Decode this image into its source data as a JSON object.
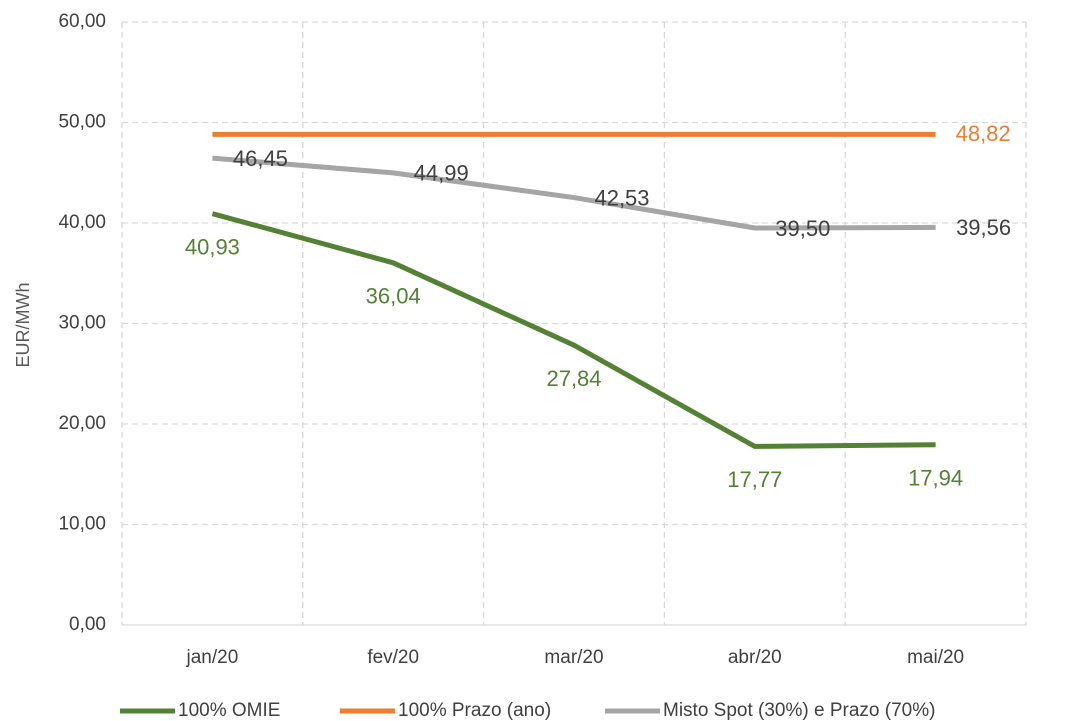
{
  "chart_data": {
    "type": "line",
    "y_label": "EUR/MWh",
    "categories": [
      "jan/20",
      "fev/20",
      "mar/20",
      "abr/20",
      "mai/20"
    ],
    "ylim": [
      0,
      60
    ],
    "yticks": [
      {
        "value": 0,
        "label": "0,00"
      },
      {
        "value": 10,
        "label": "10,00"
      },
      {
        "value": 20,
        "label": "20,00"
      },
      {
        "value": 30,
        "label": "30,00"
      },
      {
        "value": 40,
        "label": "40,00"
      },
      {
        "value": 50,
        "label": "50,00"
      },
      {
        "value": 60,
        "label": "60,00"
      }
    ],
    "grid": true,
    "legend": "bottom",
    "series": [
      {
        "name": "100% OMIE",
        "color": "#548235",
        "label_color": "#548235",
        "values": [
          40.93,
          36.04,
          27.84,
          17.77,
          17.94
        ],
        "value_labels": [
          "40,93",
          "36,04",
          "27,84",
          "17,77",
          "17,94"
        ]
      },
      {
        "name": "100% Prazo (ano)",
        "color": "#ed7d31",
        "label_color": "#ed7d31",
        "values": [
          48.82,
          48.82,
          48.82,
          48.82,
          48.82
        ],
        "value_labels": [
          null,
          null,
          null,
          null,
          "48,82"
        ]
      },
      {
        "name": "Misto Spot (30%) e Prazo (70%)",
        "color": "#a5a5a5",
        "label_color": "#404040",
        "values": [
          46.45,
          44.99,
          42.53,
          39.5,
          39.56
        ],
        "value_labels": [
          "46,45",
          "44,99",
          "42,53",
          "39,50",
          "39,56"
        ]
      }
    ]
  }
}
